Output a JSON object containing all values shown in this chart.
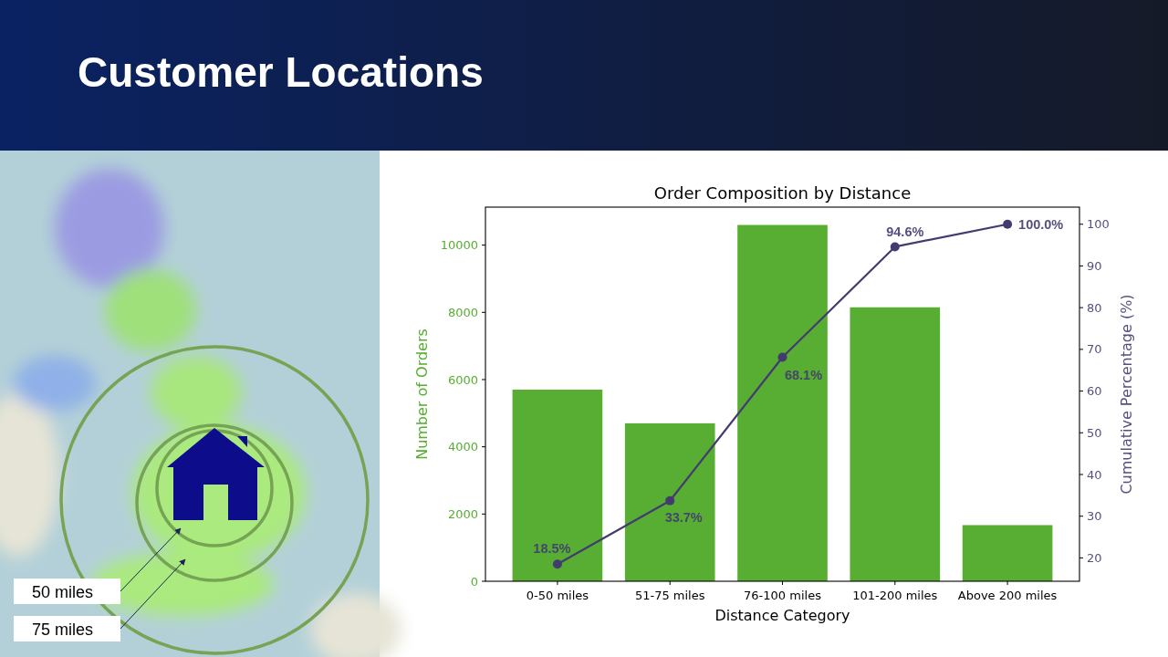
{
  "chart_data": {
    "type": "bar",
    "title": "Customer Locations",
    "subtitle": "Order Composition by Distance",
    "xlabel": "Distance Category",
    "ylabel": "Number of Orders",
    "y2label": "Cumulative Percentage (%)",
    "categories": [
      "0-50 miles",
      "51-75 miles",
      "76-100 miles",
      "101-200 miles",
      "Above 200 miles"
    ],
    "series": [
      {
        "color": "#57ae33",
        "values": [
          5700,
          4700,
          10600,
          8150,
          1670
        ]
      },
      {
        "type": "line",
        "axis": "y2",
        "color": "#433b70",
        "values": [
          18.5,
          33.7,
          68.1,
          94.6,
          100.0
        ],
        "value_labels": [
          "18.5%",
          "33.7%",
          "68.1%",
          "94.6%",
          "100.0%"
        ]
      }
    ],
    "marker": "circle",
    "ylim": [
      0,
      11130
    ],
    "yticks": [
      0,
      2000,
      4000,
      6000,
      8000,
      10000
    ],
    "y2lim": [
      14.4,
      104.1
    ],
    "y2ticks": [
      20,
      30,
      40,
      50,
      60,
      70,
      80,
      90,
      100
    ],
    "annotations": [
      "50 miles",
      "75 miles"
    ]
  }
}
